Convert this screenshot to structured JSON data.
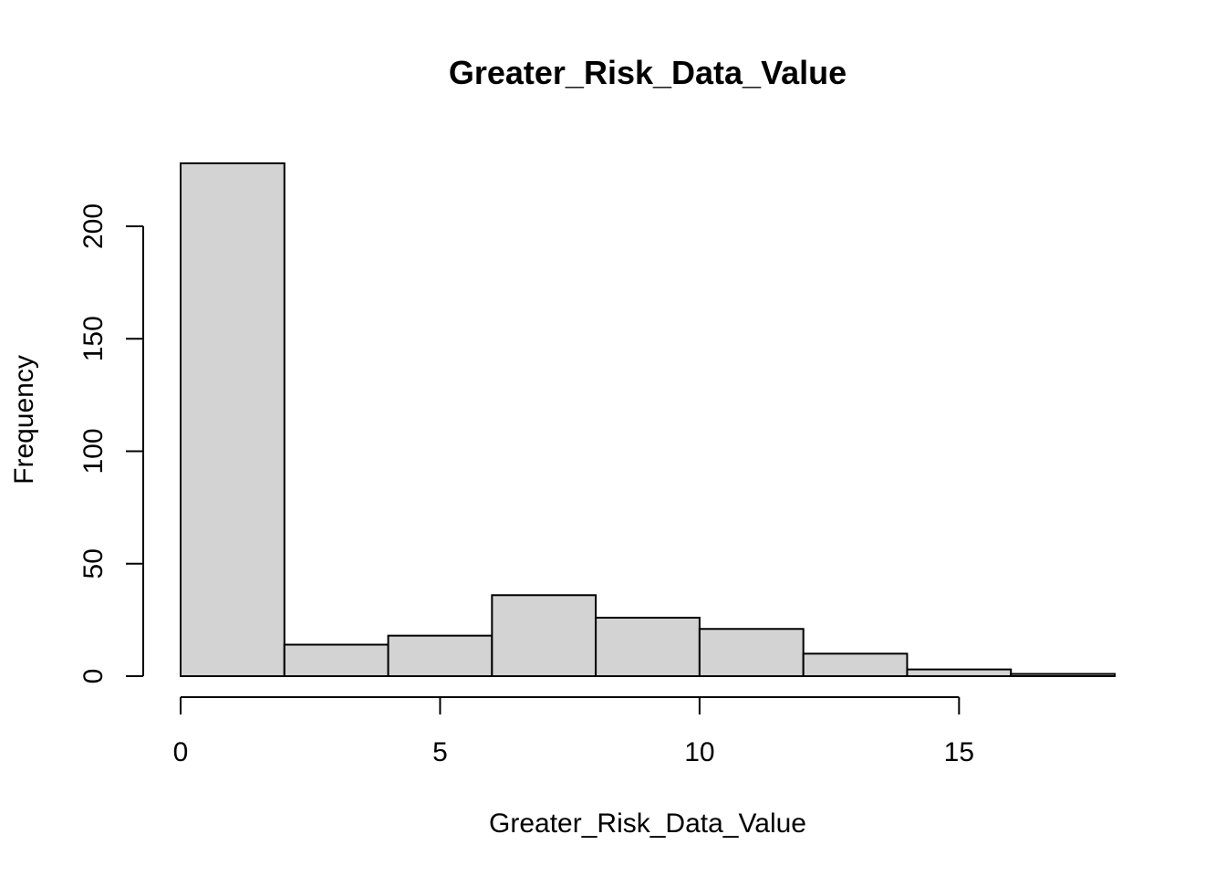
{
  "chart_data": {
    "type": "bar",
    "subtype": "histogram",
    "title": "Greater_Risk_Data_Value",
    "xlabel": "Greater_Risk_Data_Value",
    "ylabel": "Frequency",
    "bins": [
      {
        "from": 0,
        "to": 2,
        "count": 228
      },
      {
        "from": 2,
        "to": 4,
        "count": 14
      },
      {
        "from": 4,
        "to": 6,
        "count": 18
      },
      {
        "from": 6,
        "to": 8,
        "count": 36
      },
      {
        "from": 8,
        "to": 10,
        "count": 26
      },
      {
        "from": 10,
        "to": 12,
        "count": 21
      },
      {
        "from": 12,
        "to": 14,
        "count": 10
      },
      {
        "from": 14,
        "to": 16,
        "count": 3
      },
      {
        "from": 16,
        "to": 18,
        "count": 1
      }
    ],
    "x_ticks": [
      0,
      5,
      10,
      15
    ],
    "y_ticks": [
      0,
      50,
      100,
      150,
      200
    ],
    "xlim": [
      0,
      18
    ],
    "ylim": [
      0,
      228
    ],
    "grid": false,
    "bar_fill": "#d3d3d3",
    "bar_stroke": "#000000"
  }
}
